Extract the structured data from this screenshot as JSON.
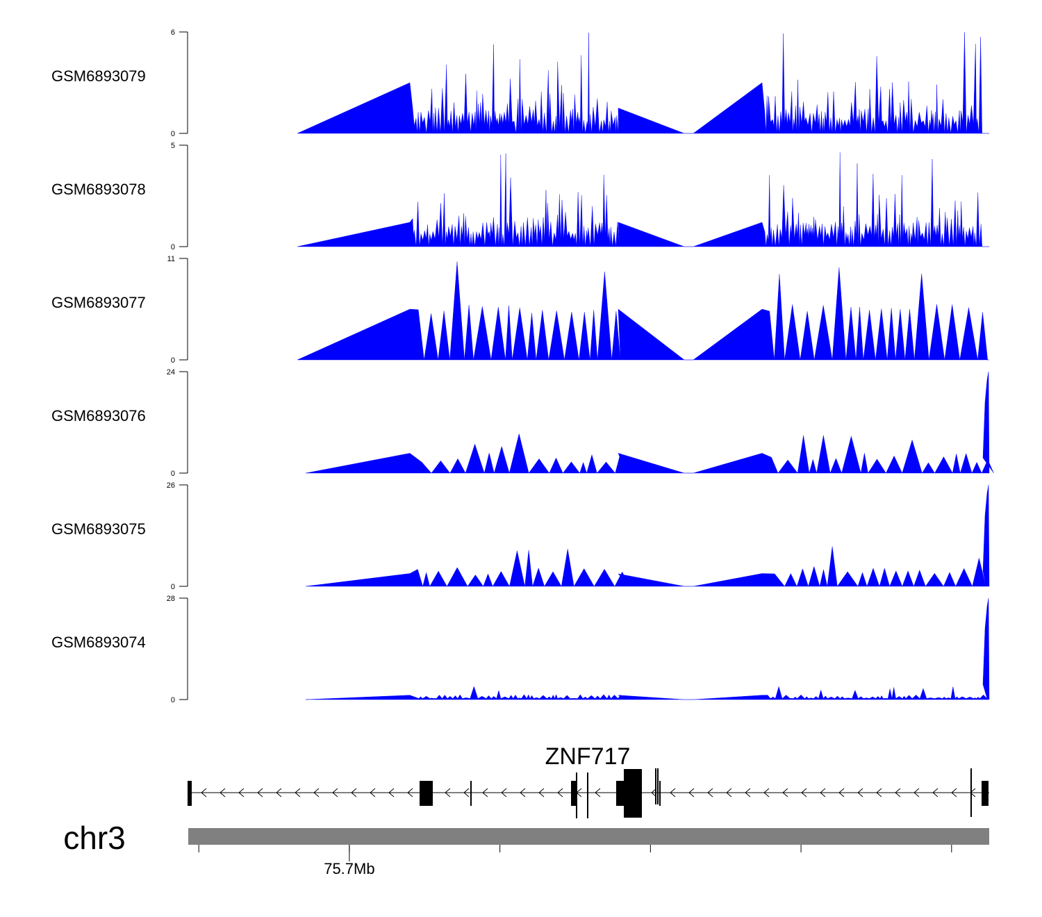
{
  "chart_data": {
    "type": "area",
    "title": "",
    "chromosome": "chr3",
    "coverage_color": "#0000ff",
    "gene": {
      "name": "ZNF717",
      "strand": "-",
      "color": "#000000"
    },
    "ideogram_color": "#808080",
    "x_axis": {
      "unit": "bp",
      "range": [
        75650000,
        75916000
      ],
      "ticks": [
        75653500,
        75703500,
        75753500,
        75803500,
        75853500,
        75903500
      ],
      "labeled_tick": {
        "value": 75703500,
        "label": "75.7Mb"
      }
    },
    "series": [
      {
        "name": "GSM6893079",
        "ylim": [
          0,
          6
        ],
        "ymax_label": "6",
        "ymin_label": "0",
        "profile": "dense",
        "anchors": [
          3,
          1.5
        ]
      },
      {
        "name": "GSM6893078",
        "ylim": [
          0,
          5
        ],
        "ymax_label": "5",
        "ymin_label": "0",
        "profile": "dense",
        "anchors": [
          1.2,
          1.2
        ]
      },
      {
        "name": "GSM6893077",
        "ylim": [
          0,
          11
        ],
        "ymax_label": "11",
        "ymin_label": "0",
        "profile": "sparse",
        "anchors": [
          5.5,
          5.5
        ]
      },
      {
        "name": "GSM6893076",
        "ylim": [
          0,
          24
        ],
        "ymax_label": "24",
        "ymin_label": "0",
        "profile": "low-end-peak",
        "anchors": [
          4.7,
          4.7
        ]
      },
      {
        "name": "GSM6893075",
        "ylim": [
          0,
          26
        ],
        "ymax_label": "26",
        "ymin_label": "0",
        "profile": "low-end-peak",
        "anchors": [
          3.3,
          3.2
        ]
      },
      {
        "name": "GSM6893074",
        "ylim": [
          0,
          28
        ],
        "ymax_label": "28",
        "ymin_label": "0",
        "profile": "flat-end-peak",
        "anchors": [
          1.2,
          1.2
        ]
      }
    ]
  }
}
